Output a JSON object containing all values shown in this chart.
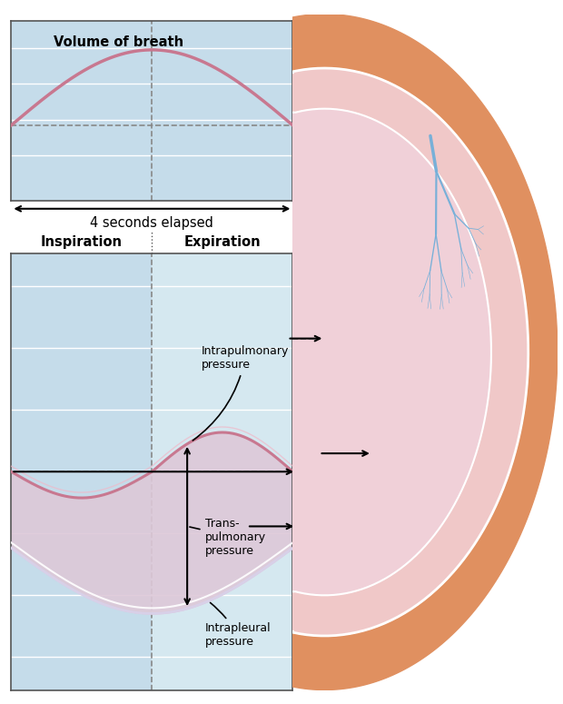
{
  "bg_light_blue": "#c5dcea",
  "bg_light_blue2": "#d5e8f0",
  "bg_white": "#ffffff",
  "bg_lavender": "#ddc8d8",
  "lung_outer_color": "#e09060",
  "lung_pleural_color": "#f0c8c8",
  "lung_tissue_color": "#f0d0d8",
  "airway_color": "#78b0d8",
  "curve_pink": "#c87890",
  "curve_white_line": "#e8e0f0",
  "grid_line_color": "#ffffff",
  "dashed_line_color": "#888888",
  "text_color": "#000000",
  "title_top": "Volume of breath",
  "label_4sec": "4 seconds elapsed",
  "label_inspiration": "Inspiration",
  "label_expiration": "Expiration",
  "label_intrapulmonary": "Intrapulmonary\npressure",
  "label_transpulmonary": "Trans-\npulmonary\npressure",
  "label_intrapleural": "Intrapleural\npressure"
}
